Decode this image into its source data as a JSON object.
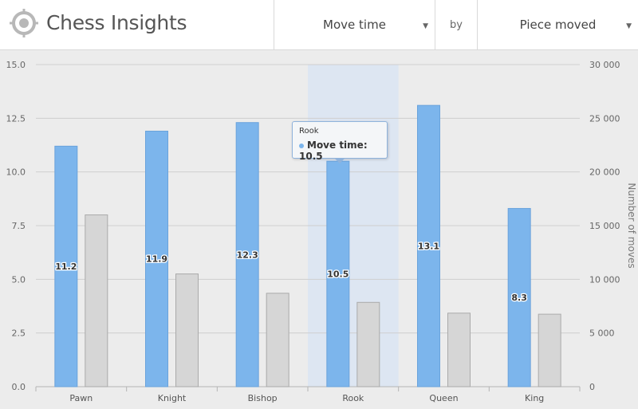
{
  "app": {
    "title": "Chess Insights"
  },
  "controls": {
    "metric": {
      "selected": "Move time"
    },
    "by_label": "by",
    "dimension": {
      "selected": "Piece moved"
    }
  },
  "colors": {
    "primary": "#7cb5ec",
    "secondary": "#d6d6d6",
    "highlight": "#dde6f2",
    "grid": "#cfcfcf"
  },
  "tooltip": {
    "title": "Rook",
    "line": "Move time: 10.5"
  },
  "chart_data": {
    "type": "bar",
    "categories": [
      "Pawn",
      "Knight",
      "Bishop",
      "Rook",
      "Queen",
      "King"
    ],
    "highlighted_category": "Rook",
    "series": [
      {
        "name": "Move time",
        "axis": "left",
        "values": [
          11.2,
          11.9,
          12.3,
          10.5,
          13.1,
          8.3
        ],
        "data_labels": [
          "11.2",
          "11.9",
          "12.3",
          "10.5",
          "13.1",
          "8.3"
        ]
      },
      {
        "axis": "right",
        "values": [
          16000,
          10500,
          8700,
          7850,
          6850,
          6750
        ]
      }
    ],
    "y_left": {
      "min": 0,
      "max": 15,
      "ticks": [
        "0.0",
        "2.5",
        "5.0",
        "7.5",
        "10.0",
        "12.5",
        "15.0"
      ]
    },
    "y_right": {
      "min": 0,
      "max": 30000,
      "label": "Number of moves",
      "ticks": [
        "0",
        "5 000",
        "10 000",
        "15 000",
        "20 000",
        "25 000",
        "30 000"
      ]
    },
    "grid": true
  }
}
